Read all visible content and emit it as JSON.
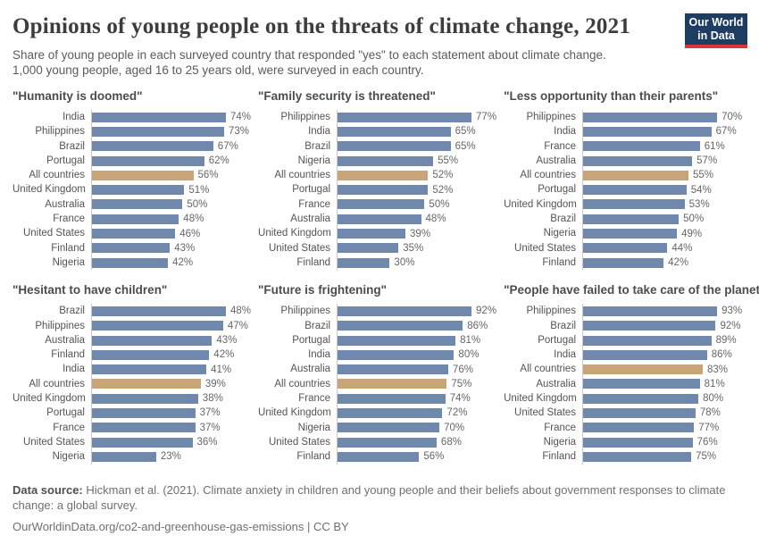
{
  "header": {
    "title": "Opinions of young people on the threats of climate change, 2021",
    "subtitle_line1": "Share of young people in each surveyed country that responded \"yes\" to each statement about climate change.",
    "subtitle_line2": "1,000 young people, aged 16 to 25 years old, were surveyed in each country.",
    "logo_line1": "Our World",
    "logo_line2": "in Data"
  },
  "colors": {
    "bar": "#7088ac",
    "highlight_bar": "#c8a478",
    "logo_bg": "#1d3d63",
    "logo_accent": "#d73832",
    "axis_line": "#c9c9c9"
  },
  "highlight_category": "All countries",
  "chart_data": [
    {
      "type": "bar",
      "title": "\"Humanity is doomed\"",
      "orientation": "horizontal",
      "value_suffix": "%",
      "xlim": [
        0,
        74
      ],
      "categories": [
        "India",
        "Philippines",
        "Brazil",
        "Portugal",
        "All countries",
        "United Kingdom",
        "Australia",
        "France",
        "United States",
        "Finland",
        "Nigeria"
      ],
      "values": [
        74,
        73,
        67,
        62,
        56,
        51,
        50,
        48,
        46,
        43,
        42
      ]
    },
    {
      "type": "bar",
      "title": "\"Family security is threatened\"",
      "orientation": "horizontal",
      "value_suffix": "%",
      "xlim": [
        0,
        77
      ],
      "categories": [
        "Philippines",
        "India",
        "Brazil",
        "Nigeria",
        "All countries",
        "Portugal",
        "France",
        "Australia",
        "United Kingdom",
        "United States",
        "Finland"
      ],
      "values": [
        77,
        65,
        65,
        55,
        52,
        52,
        50,
        48,
        39,
        35,
        30
      ]
    },
    {
      "type": "bar",
      "title": "\"Less opportunity than their parents\"",
      "orientation": "horizontal",
      "value_suffix": "%",
      "xlim": [
        0,
        70
      ],
      "categories": [
        "Philippines",
        "India",
        "France",
        "Australia",
        "All countries",
        "Portugal",
        "United Kingdom",
        "Brazil",
        "Nigeria",
        "United States",
        "Finland"
      ],
      "values": [
        70,
        67,
        61,
        57,
        55,
        54,
        53,
        50,
        49,
        44,
        42
      ]
    },
    {
      "type": "bar",
      "title": "\"Hesitant to have children\"",
      "orientation": "horizontal",
      "value_suffix": "%",
      "xlim": [
        0,
        48
      ],
      "categories": [
        "Brazil",
        "Philippines",
        "Australia",
        "Finland",
        "India",
        "All countries",
        "United Kingdom",
        "Portugal",
        "France",
        "United States",
        "Nigeria"
      ],
      "values": [
        48,
        47,
        43,
        42,
        41,
        39,
        38,
        37,
        37,
        36,
        23
      ]
    },
    {
      "type": "bar",
      "title": "\"Future is frightening\"",
      "orientation": "horizontal",
      "value_suffix": "%",
      "xlim": [
        0,
        92
      ],
      "categories": [
        "Philippines",
        "Brazil",
        "Portugal",
        "India",
        "Australia",
        "All countries",
        "France",
        "United Kingdom",
        "Nigeria",
        "United States",
        "Finland"
      ],
      "values": [
        92,
        86,
        81,
        80,
        76,
        75,
        74,
        72,
        70,
        68,
        56
      ]
    },
    {
      "type": "bar",
      "title": "\"People have failed to take care of the planet\"",
      "orientation": "horizontal",
      "value_suffix": "%",
      "xlim": [
        0,
        93
      ],
      "categories": [
        "Philippines",
        "Brazil",
        "Portugal",
        "India",
        "All countries",
        "Australia",
        "United Kingdom",
        "United States",
        "France",
        "Nigeria",
        "Finland"
      ],
      "values": [
        93,
        92,
        89,
        86,
        83,
        81,
        80,
        78,
        77,
        76,
        75
      ]
    }
  ],
  "footer": {
    "source_label": "Data source:",
    "source_text": " Hickman et al. (2021). Climate anxiety in children and young people and their beliefs about government responses to climate change: a global survey.",
    "url_line": "OurWorldinData.org/co2-and-greenhouse-gas-emissions | CC BY"
  }
}
